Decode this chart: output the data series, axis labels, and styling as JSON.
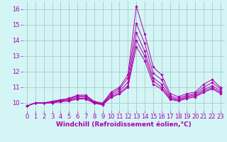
{
  "xlabel": "Windchill (Refroidissement éolien,°C)",
  "x": [
    0,
    1,
    2,
    3,
    4,
    5,
    6,
    7,
    8,
    9,
    10,
    11,
    12,
    13,
    14,
    15,
    16,
    17,
    18,
    19,
    20,
    21,
    22,
    23
  ],
  "series": [
    [
      9.8,
      10.0,
      10.0,
      10.1,
      10.2,
      10.3,
      10.5,
      10.5,
      10.1,
      10.0,
      10.7,
      11.0,
      11.8,
      16.2,
      14.4,
      12.3,
      11.8,
      10.6,
      10.4,
      10.6,
      10.7,
      11.2,
      11.5,
      11.0
    ],
    [
      9.8,
      10.0,
      10.0,
      10.1,
      10.2,
      10.25,
      10.45,
      10.45,
      10.05,
      9.95,
      10.6,
      10.9,
      11.6,
      15.1,
      13.8,
      11.9,
      11.5,
      10.45,
      10.3,
      10.5,
      10.6,
      11.0,
      11.3,
      10.9
    ],
    [
      9.8,
      10.0,
      10.0,
      10.05,
      10.15,
      10.2,
      10.38,
      10.38,
      10.02,
      9.92,
      10.5,
      10.78,
      11.3,
      14.5,
      13.3,
      11.6,
      11.2,
      10.35,
      10.22,
      10.42,
      10.52,
      10.85,
      11.1,
      10.78
    ],
    [
      9.8,
      10.0,
      10.0,
      10.02,
      10.1,
      10.15,
      10.3,
      10.3,
      10.0,
      9.9,
      10.42,
      10.65,
      11.1,
      14.0,
      13.0,
      11.4,
      11.0,
      10.28,
      10.16,
      10.35,
      10.45,
      10.75,
      10.98,
      10.68
    ],
    [
      9.8,
      10.0,
      10.0,
      10.0,
      10.08,
      10.12,
      10.25,
      10.25,
      9.98,
      9.88,
      10.35,
      10.58,
      11.0,
      13.6,
      12.7,
      11.2,
      10.88,
      10.22,
      10.12,
      10.28,
      10.38,
      10.68,
      10.9,
      10.6
    ]
  ],
  "line_color": "#aa00aa",
  "bg_color": "#d4f5f5",
  "grid_color": "#b0d0d0",
  "ylim": [
    9.5,
    16.5
  ],
  "xlim": [
    -0.5,
    23.5
  ],
  "yticks": [
    10,
    11,
    12,
    13,
    14,
    15,
    16
  ],
  "xticks": [
    0,
    1,
    2,
    3,
    4,
    5,
    6,
    7,
    8,
    9,
    10,
    11,
    12,
    13,
    14,
    15,
    16,
    17,
    18,
    19,
    20,
    21,
    22,
    23
  ],
  "tick_color": "#aa00aa",
  "label_fontsize": 6.5,
  "tick_fontsize": 6
}
